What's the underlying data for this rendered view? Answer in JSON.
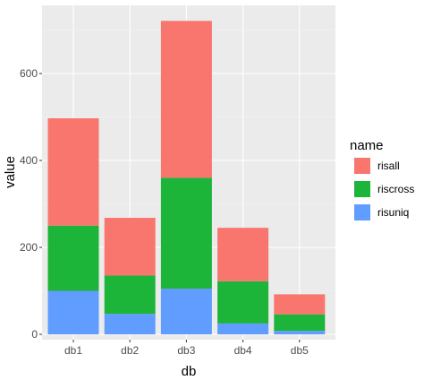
{
  "chart_data": {
    "type": "bar",
    "stacked": true,
    "categories": [
      "db1",
      "db2",
      "db3",
      "db4",
      "db5"
    ],
    "series": [
      {
        "name": "risuniq",
        "values": [
          100,
          47,
          105,
          25,
          8
        ]
      },
      {
        "name": "riscross",
        "values": [
          150,
          88,
          255,
          97,
          38
        ]
      },
      {
        "name": "risall",
        "values": [
          247,
          133,
          361,
          123,
          46
        ]
      }
    ],
    "xlabel": "db",
    "ylabel": "value",
    "ylim": [
      0,
      750
    ],
    "yticks": [
      0,
      200,
      400,
      600
    ],
    "grid": true,
    "legend": {
      "title": "name",
      "position": "right",
      "entries": [
        "risall",
        "riscross",
        "risuniq"
      ]
    },
    "colors": {
      "risall": "#F8766D",
      "riscross": "#1DB43A",
      "risuniq": "#619CFF",
      "panel_background": "#EBEBEB",
      "grid_major": "#FFFFFF",
      "grid_minor": "#F4F4F4"
    }
  }
}
